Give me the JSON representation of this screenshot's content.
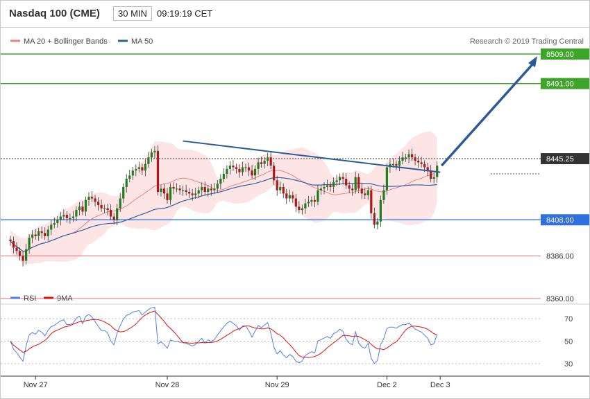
{
  "header": {
    "title": "Nasdaq 100 (CME)",
    "timeframe": "30 MIN",
    "time": "09:19:19 CET"
  },
  "legend": {
    "items": [
      {
        "label": "MA 20 + Bollinger Bands",
        "color": "#f08080"
      },
      {
        "label": "MA 50",
        "color": "#2f5f9f"
      }
    ],
    "copyright": "Research © 2019 Trading Central"
  },
  "chart_data": [
    {
      "type": "candlestick",
      "ylim": [
        8355,
        8520
      ],
      "levels": [
        {
          "value": 8509.0,
          "label": "8509.00",
          "color": "#3fa52a"
        },
        {
          "value": 8491.0,
          "label": "8491.00",
          "color": "#3fa52a"
        },
        {
          "value": 8445.25,
          "label": "8445.25",
          "color": "#333333"
        },
        {
          "value": 8408.0,
          "label": "8408.00",
          "color": "#2f6fe0"
        },
        {
          "value": 8386.0,
          "label": "8386.00",
          "color": "#e07070"
        },
        {
          "value": 8360.0,
          "label": "8360.00",
          "color": "#e07070"
        }
      ],
      "x_labels": [
        "Nov 27",
        "Nov 28",
        "Nov 29",
        "Dec 2",
        "Dec 3"
      ],
      "x_label_index": [
        8,
        50,
        85,
        120,
        137
      ],
      "closes": [
        8395,
        8391,
        8389,
        8386,
        8383,
        8390,
        8397,
        8399,
        8398,
        8401,
        8400,
        8398,
        8402,
        8405,
        8406,
        8408,
        8410,
        8411,
        8409,
        8409,
        8410,
        8414,
        8416,
        8413,
        8420,
        8422,
        8421,
        8419,
        8417,
        8415,
        8415,
        8414,
        8410,
        8408,
        8415,
        8421,
        8428,
        8433,
        8435,
        8438,
        8439,
        8440,
        8438,
        8442,
        8446,
        8449,
        8450,
        8425,
        8427,
        8424,
        8420,
        8428,
        8427,
        8427,
        8426,
        8426,
        8425,
        8424,
        8423,
        8424,
        8426,
        8428,
        8425,
        8427,
        8426,
        8427,
        8430,
        8433,
        8436,
        8439,
        8441,
        8440,
        8439,
        8437,
        8440,
        8440,
        8438,
        8435,
        8439,
        8443,
        8442,
        8444,
        8446,
        8441,
        8432,
        8426,
        8428,
        8424,
        8421,
        8423,
        8421,
        8416,
        8414,
        8415,
        8418,
        8419,
        8420,
        8419,
        8426,
        8427,
        8428,
        8429,
        8428,
        8431,
        8432,
        8434,
        8433,
        8429,
        8427,
        8426,
        8434,
        8427,
        8424,
        8423,
        8426,
        8412,
        8405,
        8407,
        8420,
        8426,
        8440,
        8442,
        8442,
        8441,
        8444,
        8446,
        8446,
        8448,
        8446,
        8444,
        8443,
        8442,
        8440,
        8438,
        8433,
        8434,
        8441
      ],
      "rsi_ylim": [
        22,
        82
      ],
      "rsi_ticks": [
        70,
        50,
        30
      ],
      "ma_names": [
        "MA 20 + Bollinger Bands",
        "MA 50"
      ],
      "rsi_names": [
        "RSI",
        "9MA"
      ]
    }
  ],
  "rsi_legend": {
    "items": [
      {
        "label": "RSI",
        "color": "#4f7fdf"
      },
      {
        "label": "9MA",
        "color": "#e01010"
      }
    ]
  }
}
